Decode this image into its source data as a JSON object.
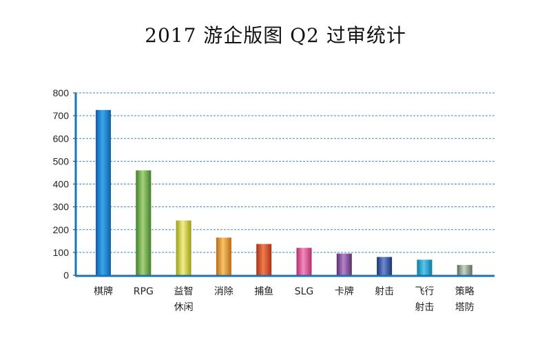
{
  "chart_data": {
    "type": "bar",
    "title": "2017 游企版图 Q2 过审统计",
    "xlabel": "",
    "ylabel": "",
    "ylim": [
      0,
      800
    ],
    "yticks": [
      0,
      100,
      200,
      300,
      400,
      500,
      600,
      700,
      800
    ],
    "grid": true,
    "legend": "none",
    "categories": [
      [
        "棋牌"
      ],
      [
        "RPG"
      ],
      [
        "益智",
        "休闲"
      ],
      [
        "消除"
      ],
      [
        "捕鱼"
      ],
      [
        "SLG"
      ],
      [
        "卡牌"
      ],
      [
        "射击"
      ],
      [
        "飞行",
        "射击"
      ],
      [
        "策略",
        "塔防"
      ]
    ],
    "values": [
      725,
      460,
      240,
      165,
      137,
      120,
      95,
      80,
      68,
      45
    ],
    "colors": [
      [
        "#0b5fa8",
        "#3ba6ec",
        "#0b5fa8"
      ],
      [
        "#3f7f2a",
        "#a6d27a",
        "#3f7f2a"
      ],
      [
        "#9c9c14",
        "#f2f08a",
        "#9c9c14"
      ],
      [
        "#b86a12",
        "#f6c46a",
        "#b86a12"
      ],
      [
        "#a83414",
        "#f27a4e",
        "#a83414"
      ],
      [
        "#b0306a",
        "#f48ac0",
        "#b0306a"
      ],
      [
        "#5b2d6e",
        "#b483c8",
        "#5b2d6e"
      ],
      [
        "#1b3270",
        "#6b8ad0",
        "#1b3270"
      ],
      [
        "#0b7aa0",
        "#58c7ec",
        "#0b7aa0"
      ],
      [
        "#5c6b5c",
        "#c8d6c8",
        "#5c6b5c"
      ]
    ],
    "axis_color": "#1a73b8",
    "grid_color": "#3a8ac4"
  }
}
